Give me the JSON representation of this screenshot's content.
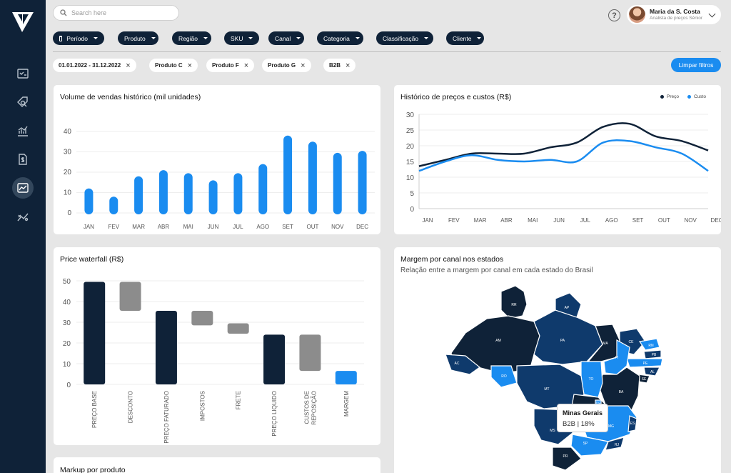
{
  "search": {
    "placeholder": "Search here"
  },
  "user": {
    "name": "Maria da S. Costa",
    "role": "Analista de preços Sênior"
  },
  "help_symbol": "?",
  "nav": [
    "checklist-icon",
    "tag-search-icon",
    "trend-chart-icon",
    "dollar-doc-icon",
    "area-chart-icon",
    "scatter-icon"
  ],
  "filters": [
    "Período",
    "Produto",
    "Região",
    "SKU",
    "Canal",
    "Categoria",
    "Classificação",
    "Cliente"
  ],
  "chips": [
    "01.01.2022 - 31.12.2022",
    "Produto C",
    "Produto F",
    "Produto G",
    "B2B"
  ],
  "clear_label": "Limpar filtros",
  "sales": {
    "title": "Volume de vendas histórico (mil unidades)"
  },
  "prices": {
    "title": "Histórico de preços e custos (R$)",
    "legend_price": "Preço",
    "legend_cost": "Custo"
  },
  "waterfall": {
    "title": "Price waterfall (R$)"
  },
  "map": {
    "title": "Margem por canal nos estados",
    "subtitle": "Relação entre a margem por canal em cada estado do Brasil",
    "tooltip_title": "Minas Gerais",
    "tooltip_value": "B2B | 18%",
    "states": [
      "RR",
      "AP",
      "AM",
      "PA",
      "MA",
      "CE",
      "RN",
      "PB",
      "PE",
      "AL",
      "SE",
      "PI",
      "BA",
      "TO",
      "AC",
      "RO",
      "MT",
      "GO",
      "DF",
      "MS",
      "MG",
      "ES",
      "SP",
      "RJ",
      "PR"
    ]
  },
  "markup": {
    "title": "Markup por produto"
  },
  "colors": {
    "navy": "#0f2238",
    "blue": "#1a8cf0",
    "gray": "#8c8c8c"
  },
  "chart_data": [
    {
      "type": "bar",
      "title": "Volume de vendas histórico (mil unidades)",
      "categories": [
        "JAN",
        "FEV",
        "MAR",
        "ABR",
        "MAI",
        "JUN",
        "JUL",
        "AGO",
        "SET",
        "OUT",
        "NOV",
        "DEC"
      ],
      "values": [
        12,
        8,
        18,
        21,
        19.5,
        16,
        19.5,
        24,
        38,
        35,
        29.5,
        30.5
      ],
      "ylim": [
        0,
        40
      ],
      "yticks": [
        0,
        10,
        20,
        30,
        40
      ]
    },
    {
      "type": "line",
      "title": "Histórico de preços e custos (R$)",
      "categories": [
        "JAN",
        "FEV",
        "MAR",
        "ABR",
        "MAI",
        "JUN",
        "JUL",
        "AGO",
        "SET",
        "OUT",
        "NOV",
        "DEC"
      ],
      "series": [
        {
          "name": "Preço",
          "values": [
            13.5,
            15.5,
            17.5,
            17.5,
            17.5,
            19.5,
            21,
            26,
            27,
            23,
            21.5,
            18.5
          ]
        },
        {
          "name": "Custo",
          "values": [
            12,
            15,
            17,
            15.5,
            15,
            15.5,
            15,
            21,
            21.5,
            19.5,
            17.5,
            12
          ]
        }
      ],
      "ylim": [
        0,
        30
      ],
      "yticks": [
        0,
        5,
        10,
        15,
        20,
        25,
        30
      ]
    },
    {
      "type": "bar",
      "title": "Price waterfall (R$)",
      "categories": [
        "PREÇO BASE",
        "DESCONTO",
        "PREÇO FATURADO",
        "IMPOSTOS",
        "FRETE",
        "PREÇO LIQUIDO",
        "CUSTOS DE REPOSIÇÃO",
        "MARGEM"
      ],
      "ranges": [
        [
          0,
          49.5
        ],
        [
          35.5,
          49.5
        ],
        [
          0,
          35.5
        ],
        [
          28.5,
          35.5
        ],
        [
          24.5,
          29.5
        ],
        [
          0,
          24
        ],
        [
          6.5,
          24
        ],
        [
          0,
          6.5
        ]
      ],
      "kinds": [
        "total",
        "delta",
        "total",
        "delta",
        "delta",
        "total",
        "delta",
        "margin"
      ],
      "ylim": [
        0,
        50
      ],
      "yticks": [
        0,
        10,
        20,
        30,
        40,
        50
      ]
    }
  ]
}
